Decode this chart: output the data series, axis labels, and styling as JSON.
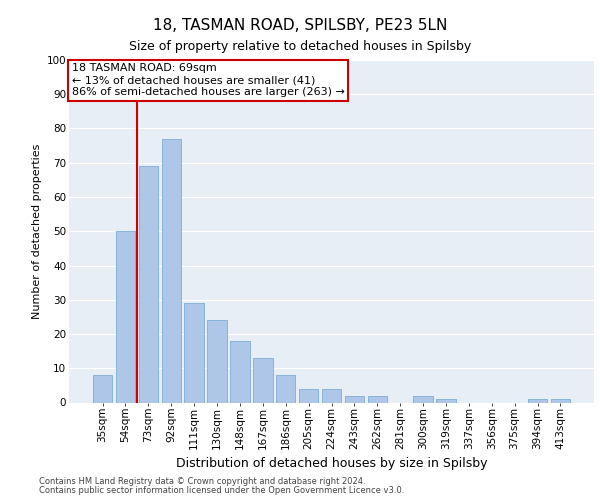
{
  "title1": "18, TASMAN ROAD, SPILSBY, PE23 5LN",
  "title2": "Size of property relative to detached houses in Spilsby",
  "xlabel": "Distribution of detached houses by size in Spilsby",
  "ylabel": "Number of detached properties",
  "categories": [
    "35sqm",
    "54sqm",
    "73sqm",
    "92sqm",
    "111sqm",
    "130sqm",
    "148sqm",
    "167sqm",
    "186sqm",
    "205sqm",
    "224sqm",
    "243sqm",
    "262sqm",
    "281sqm",
    "300sqm",
    "319sqm",
    "337sqm",
    "356sqm",
    "375sqm",
    "394sqm",
    "413sqm"
  ],
  "values": [
    8,
    50,
    69,
    77,
    29,
    24,
    18,
    13,
    8,
    4,
    4,
    2,
    2,
    0,
    2,
    1,
    0,
    0,
    0,
    1,
    1
  ],
  "bar_color": "#aec6e8",
  "bar_edge_color": "#7aadd4",
  "property_line_color": "#cc0000",
  "annotation_text": "18 TASMAN ROAD: 69sqm\n← 13% of detached houses are smaller (41)\n86% of semi-detached houses are larger (263) →",
  "annotation_box_color": "#ffffff",
  "annotation_box_edge_color": "#cc0000",
  "ylim": [
    0,
    100
  ],
  "yticks": [
    0,
    10,
    20,
    30,
    40,
    50,
    60,
    70,
    80,
    90,
    100
  ],
  "background_color": "#e8eef6",
  "grid_color": "#ffffff",
  "footer_line1": "Contains HM Land Registry data © Crown copyright and database right 2024.",
  "footer_line2": "Contains public sector information licensed under the Open Government Licence v3.0.",
  "title1_fontsize": 11,
  "title2_fontsize": 9,
  "ylabel_fontsize": 8,
  "xlabel_fontsize": 9,
  "tick_fontsize": 7.5,
  "footer_fontsize": 6,
  "annotation_fontsize": 8
}
